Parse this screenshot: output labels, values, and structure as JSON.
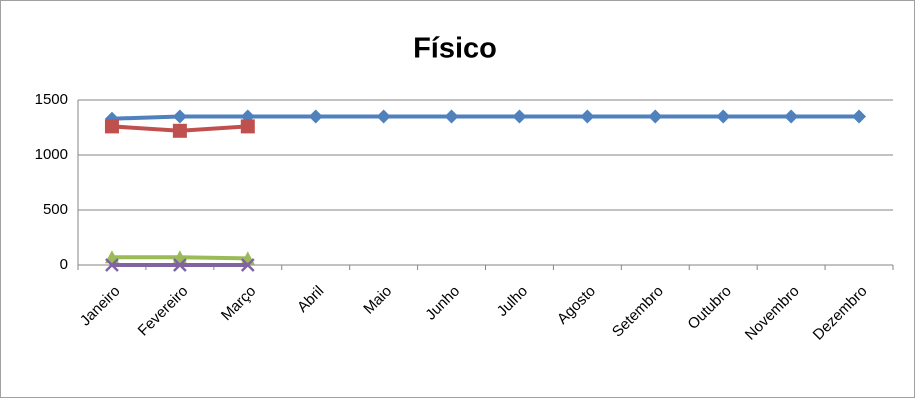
{
  "chart_data": {
    "type": "line",
    "title": "Físico",
    "categories": [
      "Janeiro",
      "Fevereiro",
      "Março",
      "Abril",
      "Maio",
      "Junho",
      "Julho",
      "Agosto",
      "Setembro",
      "Outubro",
      "Novembro",
      "Dezembro"
    ],
    "series": [
      {
        "color": "#4f81bd",
        "marker": "diamond",
        "values": [
          1330,
          1350,
          1350,
          1350,
          1350,
          1350,
          1350,
          1350,
          1350,
          1350,
          1350,
          1350
        ]
      },
      {
        "color": "#c0504d",
        "marker": "square",
        "values": [
          1260,
          1220,
          1260,
          null,
          null,
          null,
          null,
          null,
          null,
          null,
          null,
          null
        ]
      },
      {
        "color": "#9bbb59",
        "marker": "triangle",
        "values": [
          70,
          70,
          60,
          null,
          null,
          null,
          null,
          null,
          null,
          null,
          null,
          null
        ]
      },
      {
        "color": "#8064a2",
        "marker": "x",
        "values": [
          0,
          0,
          0,
          null,
          null,
          null,
          null,
          null,
          null,
          null,
          null,
          null
        ]
      }
    ],
    "ylim": [
      0,
      1500
    ],
    "yticks": [
      0,
      500,
      1000,
      1500
    ],
    "grid": true
  }
}
